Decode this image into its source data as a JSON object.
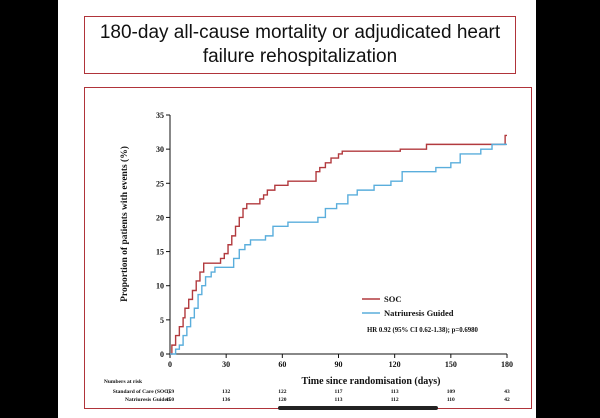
{
  "title_line1": "180-day all-cause mortality or adjudicated heart",
  "title_line2": "failure rehospitalization",
  "colors": {
    "soc": "#b23a3e",
    "ng": "#5aaedc",
    "frame": "#b0343a"
  },
  "chart_data": {
    "type": "line",
    "xlabel": "Time since randomisation (days)",
    "ylabel": "Proportion of patients with events (%)",
    "xlim": [
      0,
      180
    ],
    "ylim": [
      0,
      35
    ],
    "xticks": [
      0,
      30,
      60,
      90,
      120,
      150,
      180
    ],
    "yticks": [
      0,
      5,
      10,
      15,
      20,
      25,
      30,
      35
    ],
    "series": [
      {
        "name": "SOC",
        "color": "#b23a3e",
        "points": [
          [
            0,
            0
          ],
          [
            1,
            1.3
          ],
          [
            3,
            2.7
          ],
          [
            5,
            4
          ],
          [
            7,
            5.3
          ],
          [
            8,
            6.7
          ],
          [
            10,
            8
          ],
          [
            12,
            9.3
          ],
          [
            14,
            10.7
          ],
          [
            16,
            12
          ],
          [
            18,
            13.3
          ],
          [
            26,
            13.3
          ],
          [
            27,
            14
          ],
          [
            29,
            14.7
          ],
          [
            31,
            16
          ],
          [
            33,
            17.3
          ],
          [
            35,
            18.7
          ],
          [
            37,
            20
          ],
          [
            39,
            21.3
          ],
          [
            41,
            22
          ],
          [
            46,
            22
          ],
          [
            48,
            22.7
          ],
          [
            50,
            23.3
          ],
          [
            52,
            24
          ],
          [
            56,
            24.7
          ],
          [
            63,
            25.3
          ],
          [
            76,
            25.3
          ],
          [
            78,
            26.7
          ],
          [
            80,
            27.3
          ],
          [
            83,
            28
          ],
          [
            86,
            28.7
          ],
          [
            90,
            29.3
          ],
          [
            92,
            29.7
          ],
          [
            121,
            29.7
          ],
          [
            123,
            30
          ],
          [
            135,
            30
          ],
          [
            137,
            30.7
          ],
          [
            178,
            30.7
          ],
          [
            179,
            32
          ],
          [
            180,
            32
          ]
        ]
      },
      {
        "name": "Natriuresis Guided",
        "color": "#5aaedc",
        "points": [
          [
            0,
            0
          ],
          [
            3,
            0.7
          ],
          [
            5,
            1.3
          ],
          [
            7,
            2.7
          ],
          [
            9,
            4
          ],
          [
            11,
            5.3
          ],
          [
            13,
            6.7
          ],
          [
            15,
            8.7
          ],
          [
            17,
            10
          ],
          [
            19,
            11.3
          ],
          [
            22,
            12
          ],
          [
            24,
            12.7
          ],
          [
            32,
            12.7
          ],
          [
            34,
            14
          ],
          [
            37,
            15.3
          ],
          [
            40,
            16
          ],
          [
            43,
            16.7
          ],
          [
            48,
            16.7
          ],
          [
            51,
            17.3
          ],
          [
            55,
            18.7
          ],
          [
            63,
            19.3
          ],
          [
            75,
            19.3
          ],
          [
            79,
            20
          ],
          [
            83,
            21.3
          ],
          [
            89,
            22
          ],
          [
            95,
            23.3
          ],
          [
            100,
            24
          ],
          [
            109,
            24.7
          ],
          [
            118,
            25.3
          ],
          [
            124,
            26.7
          ],
          [
            138,
            26.7
          ],
          [
            142,
            27.3
          ],
          [
            150,
            28
          ],
          [
            155,
            29.3
          ],
          [
            166,
            30
          ],
          [
            172,
            30.7
          ],
          [
            180,
            30.7
          ]
        ]
      }
    ],
    "legend": [
      "SOC",
      "Natriuresis Guided"
    ],
    "legend_position": "bottom-right",
    "annotation": "HR 0.92 (95% CI 0.62-1.38); p=0.6980",
    "risk_table": {
      "header": "Numbers at risk",
      "timepoints": [
        0,
        30,
        60,
        90,
        120,
        150,
        180
      ],
      "rows": [
        {
          "label": "Standard of Care (SOC)",
          "values": [
            159,
            132,
            122,
            117,
            113,
            109,
            43
          ]
        },
        {
          "label": "Natriuresis Guided",
          "values": [
            150,
            136,
            120,
            113,
            112,
            110,
            42
          ]
        }
      ]
    }
  }
}
